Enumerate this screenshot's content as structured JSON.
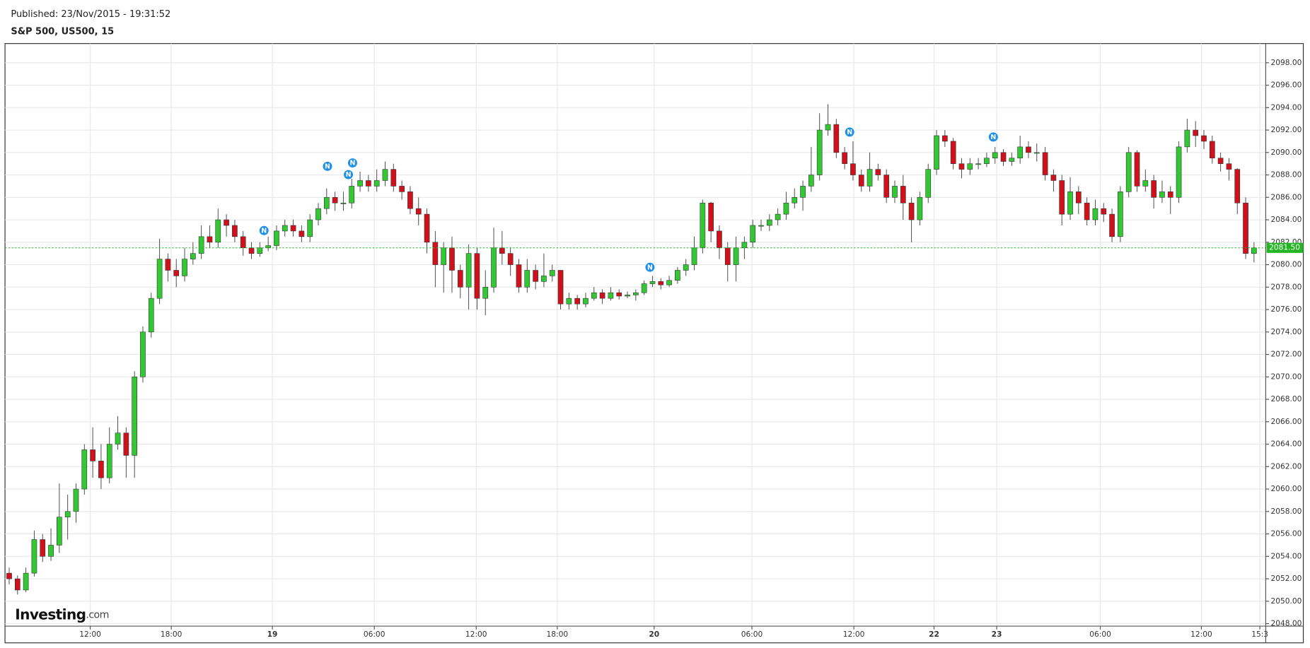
{
  "header": {
    "published": "Published: 23/Nov/2015 - 19:31:52",
    "symbol": "S&P 500, US500, 15"
  },
  "watermark": {
    "brand": "Investing",
    "suffix": ".com"
  },
  "chart_data": {
    "type": "candlestick",
    "up_color": "#32c832",
    "down_color": "#d0101b",
    "grid": true,
    "ylim": [
      2047.78,
      2099.71
    ],
    "xlim": [
      0,
      150.9
    ],
    "yticks": [
      {
        "value": 2048,
        "label": "2048.00"
      },
      {
        "value": 2050,
        "label": "2050.00"
      },
      {
        "value": 2052,
        "label": "2052.00"
      },
      {
        "value": 2054,
        "label": "2054.00"
      },
      {
        "value": 2056,
        "label": "2056.00"
      },
      {
        "value": 2058,
        "label": "2058.00"
      },
      {
        "value": 2060,
        "label": "2060.00"
      },
      {
        "value": 2062,
        "label": "2062.00"
      },
      {
        "value": 2064,
        "label": "2064.00"
      },
      {
        "value": 2066,
        "label": "2066.00"
      },
      {
        "value": 2068,
        "label": "2068.00"
      },
      {
        "value": 2070,
        "label": "2070.00"
      },
      {
        "value": 2072,
        "label": "2072.00"
      },
      {
        "value": 2074,
        "label": "2074.00"
      },
      {
        "value": 2076,
        "label": "2076.00"
      },
      {
        "value": 2078,
        "label": "2078.00"
      },
      {
        "value": 2080,
        "label": "2080.00"
      },
      {
        "value": 2082,
        "label": "2082.00"
      },
      {
        "value": 2084,
        "label": "2084.00"
      },
      {
        "value": 2086,
        "label": "2086.00"
      },
      {
        "value": 2088,
        "label": "2088.00"
      },
      {
        "value": 2090,
        "label": "2090.00"
      },
      {
        "value": 2092,
        "label": "2092.00"
      },
      {
        "value": 2094,
        "label": "2094.00"
      },
      {
        "value": 2096,
        "label": "2096.00"
      },
      {
        "value": 2098,
        "label": "2098.00"
      }
    ],
    "xticks": [
      {
        "value": 10.2,
        "label": "12:00"
      },
      {
        "value": 19.9,
        "label": "18:00"
      },
      {
        "value": 32,
        "label": "19"
      },
      {
        "value": 44.2,
        "label": "06:00"
      },
      {
        "value": 56.4,
        "label": "12:00"
      },
      {
        "value": 66.1,
        "label": "18:00"
      },
      {
        "value": 77.7,
        "label": "20"
      },
      {
        "value": 89.4,
        "label": "06:00"
      },
      {
        "value": 101.6,
        "label": "12:00"
      },
      {
        "value": 111.2,
        "label": "22"
      },
      {
        "value": 118.7,
        "label": "23"
      },
      {
        "value": 131.1,
        "label": "06:00"
      },
      {
        "value": 143.2,
        "label": "12:00"
      },
      {
        "value": 150.2,
        "label": "15:3"
      }
    ],
    "last_price": {
      "value": 2081.5,
      "label": "2081.50",
      "color": "#22b422"
    },
    "news": [
      {
        "x": 31,
        "y": 2083.04,
        "label": "N"
      },
      {
        "x": 38.6,
        "y": 2088.77,
        "label": "N"
      },
      {
        "x": 41.6,
        "y": 2089.07,
        "label": "N"
      },
      {
        "x": 41.1,
        "y": 2088.03,
        "label": "N"
      },
      {
        "x": 77.2,
        "y": 2079.77,
        "label": "N"
      },
      {
        "x": 101.1,
        "y": 2091.82,
        "label": "N"
      },
      {
        "x": 118.3,
        "y": 2091.38,
        "label": "N"
      }
    ],
    "open": [
      2052.5,
      2052,
      2051,
      2052.5,
      2055.5,
      2054,
      2055,
      2057.5,
      2058,
      2060,
      2063.5,
      2062.5,
      2061,
      2064,
      2065,
      2063,
      2070,
      2074,
      2077,
      2080.5,
      2079.5,
      2079,
      2080.5,
      2081,
      2082.5,
      2082,
      2084,
      2083.5,
      2082.5,
      2081.5,
      2081,
      2081.5,
      2081.7,
      2083,
      2083.5,
      2083,
      2082.5,
      2084,
      2085,
      2086,
      2085.5,
      2085.5,
      2087,
      2087.5,
      2087,
      2087.5,
      2088.5,
      2087,
      2086.5,
      2085,
      2084.5,
      2082,
      2080,
      2081.5,
      2079.5,
      2078,
      2081,
      2077,
      2078,
      2081.5,
      2081,
      2080,
      2078,
      2079.5,
      2078.5,
      2079,
      2079.5,
      2076.5,
      2077,
      2076.5,
      2077,
      2077.5,
      2077,
      2077.5,
      2077.2,
      2077.3,
      2077.5,
      2078.3,
      2078.5,
      2078.2,
      2078.6,
      2079.5,
      2080,
      2081.5,
      2085.5,
      2083,
      2081.5,
      2080,
      2081.5,
      2082,
      2083.5,
      2083.5,
      2084,
      2084.5,
      2085.5,
      2086,
      2087,
      2088,
      2092,
      2092.5,
      2090,
      2089,
      2088,
      2087,
      2088.5,
      2088,
      2086,
      2087,
      2085.5,
      2084,
      2086,
      2088.5,
      2091.5,
      2091,
      2089,
      2088.5,
      2089,
      2089,
      2089.5,
      2090,
      2089.2,
      2089.5,
      2090.5,
      2090,
      2090,
      2088,
      2087.5,
      2084.5,
      2086.5,
      2085.5,
      2084,
      2085,
      2084.5,
      2082.5,
      2086.5,
      2090,
      2087,
      2087.5,
      2086,
      2086.5,
      2086,
      2090.5,
      2092,
      2091.5,
      2091,
      2089.5,
      2089,
      2088.5,
      2085.5,
      2081
    ],
    "high": [
      2053,
      2052.3,
      2053,
      2056.3,
      2056,
      2056.5,
      2060.5,
      2059.5,
      2060.5,
      2064,
      2065.5,
      2064,
      2065.5,
      2066.5,
      2065.5,
      2070.5,
      2074.5,
      2077.5,
      2082.3,
      2081,
      2080.5,
      2081.5,
      2082,
      2083.5,
      2083.5,
      2085,
      2084.5,
      2084,
      2083,
      2082,
      2082,
      2082.5,
      2083.5,
      2084,
      2084,
      2083.5,
      2084.5,
      2085.5,
      2086.8,
      2086.5,
      2086.5,
      2088,
      2088.3,
      2088,
      2088.5,
      2089.2,
      2089,
      2087.5,
      2087,
      2086,
      2085,
      2083,
      2082,
      2082.5,
      2080,
      2081.8,
      2081.5,
      2079.5,
      2083.3,
      2083,
      2081.5,
      2080.5,
      2080.5,
      2080,
      2081,
      2080,
      2079.5,
      2077.5,
      2077.3,
      2077.5,
      2078,
      2077.8,
      2078,
      2077.8,
      2077.6,
      2077.8,
      2078.6,
      2079,
      2078.8,
      2079,
      2079.8,
      2080.5,
      2082.5,
      2085.8,
      2085.6,
      2083.5,
      2082,
      2082.5,
      2082.5,
      2084,
      2084,
      2084.5,
      2085,
      2086.5,
      2086.8,
      2087.5,
      2090.5,
      2093.5,
      2094.3,
      2093,
      2090.5,
      2091,
      2088.5,
      2090,
      2089,
      2088.5,
      2087.5,
      2088,
      2086,
      2086.5,
      2089,
      2092,
      2092,
      2091.3,
      2089.5,
      2089.5,
      2089.5,
      2090,
      2090.5,
      2090.3,
      2090,
      2091.5,
      2091,
      2090.8,
      2090.5,
      2088.5,
      2088,
      2087.8,
      2087,
      2086,
      2085.8,
      2085.5,
      2085,
      2087,
      2090.5,
      2090.2,
      2088.5,
      2088,
      2087.5,
      2087,
      2091,
      2093,
      2092.8,
      2092,
      2091.5,
      2090,
      2089.5,
      2088.6,
      2086,
      2082
    ],
    "low": [
      2051.5,
      2050.6,
      2050.8,
      2052.2,
      2053.5,
      2053.6,
      2054.3,
      2055.5,
      2057,
      2059.5,
      2061,
      2060,
      2060.5,
      2063.5,
      2061,
      2061,
      2069.5,
      2073.5,
      2076.5,
      2078.5,
      2078,
      2078.5,
      2080,
      2080.5,
      2081.5,
      2081.5,
      2082.5,
      2082,
      2080.8,
      2080.5,
      2080.7,
      2081.2,
      2081.3,
      2082.5,
      2082.5,
      2082,
      2082,
      2083.5,
      2084.5,
      2084.8,
      2084.8,
      2085,
      2086.5,
      2086.5,
      2086.5,
      2087,
      2086.5,
      2085.8,
      2084.5,
      2083.5,
      2081,
      2078,
      2077.5,
      2077.5,
      2077,
      2076,
      2076,
      2075.5,
      2077.5,
      2080,
      2079,
      2077.5,
      2077.5,
      2077.8,
      2078,
      2078.5,
      2076,
      2076,
      2076,
      2076.2,
      2076.8,
      2076.5,
      2076.8,
      2076.9,
      2077,
      2076.8,
      2077.3,
      2078,
      2077.8,
      2078,
      2078.3,
      2079,
      2079.5,
      2081,
      2082,
      2080.5,
      2078.5,
      2078.5,
      2080.5,
      2081.5,
      2083,
      2083,
      2083.5,
      2084,
      2085,
      2084.8,
      2086.5,
      2087.5,
      2091.5,
      2089.5,
      2088.5,
      2087.5,
      2086.5,
      2086.5,
      2087.5,
      2085.5,
      2085.5,
      2084,
      2082,
      2083.5,
      2085.5,
      2088,
      2090.5,
      2088.5,
      2087.7,
      2088,
      2088.5,
      2088.7,
      2089,
      2088.8,
      2088.8,
      2089,
      2089.5,
      2089.2,
      2087.5,
      2086.5,
      2083.5,
      2084,
      2084.5,
      2083.5,
      2083.5,
      2083.8,
      2082,
      2082,
      2086,
      2086.5,
      2086.5,
      2085,
      2085.5,
      2084.5,
      2085.5,
      2090,
      2090.5,
      2090.3,
      2089,
      2088.3,
      2087.5,
      2084.5,
      2080.5,
      2080.2
    ],
    "close": [
      2052,
      2051,
      2052.5,
      2055.5,
      2054,
      2055,
      2057.5,
      2058,
      2060,
      2063.5,
      2062.5,
      2061,
      2064,
      2065,
      2063,
      2070,
      2074,
      2077,
      2080.5,
      2079.5,
      2079,
      2080.5,
      2081,
      2082.5,
      2082,
      2084,
      2083.5,
      2082.5,
      2081.5,
      2081,
      2081.5,
      2081.7,
      2083,
      2083.5,
      2083,
      2082.5,
      2084,
      2085,
      2086,
      2085.5,
      2085.5,
      2087,
      2087.5,
      2087,
      2087.5,
      2088.5,
      2087,
      2086.5,
      2085,
      2084.5,
      2082,
      2080,
      2081.5,
      2079.5,
      2078,
      2081,
      2077,
      2078,
      2081.5,
      2081,
      2080,
      2078,
      2079.5,
      2078.5,
      2079,
      2079.5,
      2076.5,
      2077,
      2076.5,
      2077,
      2077.5,
      2077,
      2077.5,
      2077.2,
      2077.3,
      2077.5,
      2078.3,
      2078.5,
      2078.2,
      2078.6,
      2079.5,
      2080,
      2081.5,
      2085.5,
      2083,
      2081.5,
      2080,
      2081.5,
      2082,
      2083.5,
      2083.5,
      2084,
      2084.5,
      2085.5,
      2086,
      2087,
      2088,
      2092,
      2092.5,
      2090,
      2089,
      2088,
      2087,
      2088.5,
      2088,
      2086,
      2087,
      2085.5,
      2084,
      2086,
      2088.5,
      2091.5,
      2091,
      2089,
      2088.5,
      2089,
      2089,
      2089.5,
      2090,
      2089.2,
      2089.5,
      2090.5,
      2090,
      2090,
      2088,
      2087.5,
      2084.5,
      2086.5,
      2085.5,
      2084,
      2085,
      2084.5,
      2082.5,
      2086.5,
      2090,
      2087,
      2087.5,
      2086,
      2086.5,
      2086,
      2090.5,
      2092,
      2091.5,
      2091,
      2089.5,
      2089,
      2088.5,
      2085.5,
      2081,
      2081.5
    ]
  }
}
